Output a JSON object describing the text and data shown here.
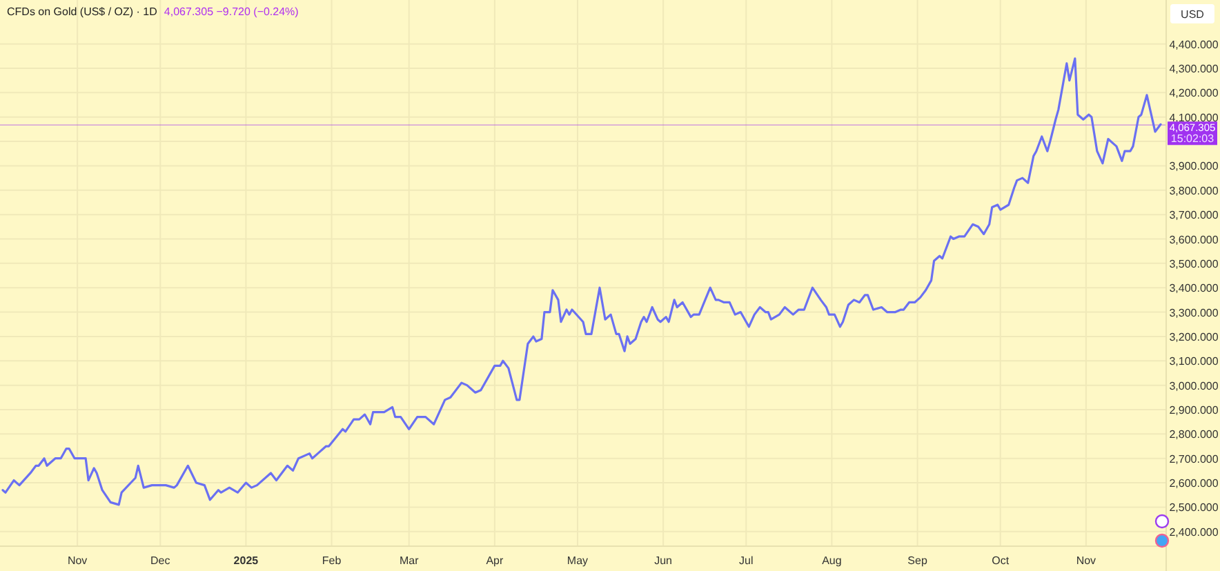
{
  "chart_data": {
    "type": "line",
    "title": "CFDs on Gold (US$ / OZ) · 1D",
    "subtitle": "4,067.305 −9.720 (−0.24%)",
    "ylabel": "USD",
    "annotations": [
      "15:02:03"
    ],
    "x": [
      "2024-10-05",
      "2024-10-06",
      "2024-10-09",
      "2024-10-11",
      "2024-10-15",
      "2024-10-17",
      "2024-10-18",
      "2024-10-20",
      "2024-10-21",
      "2024-10-24",
      "2024-10-26",
      "2024-10-28",
      "2024-10-29",
      "2024-10-31",
      "2024-11-04",
      "2024-11-05",
      "2024-11-07",
      "2024-11-08",
      "2024-11-10",
      "2024-11-13",
      "2024-11-16",
      "2024-11-17",
      "2024-11-22",
      "2024-11-23",
      "2024-11-25",
      "2024-11-28",
      "2024-11-30",
      "2024-12-01",
      "2024-12-03",
      "2024-12-06",
      "2024-12-07",
      "2024-12-11",
      "2024-12-14",
      "2024-12-17",
      "2024-12-19",
      "2024-12-22",
      "2024-12-23",
      "2024-12-26",
      "2024-12-29",
      "2025-01-01",
      "2025-01-03",
      "2025-01-05",
      "2025-01-10",
      "2025-01-12",
      "2025-01-16",
      "2025-01-18",
      "2025-01-20",
      "2025-01-24",
      "2025-01-25",
      "2025-01-27",
      "2025-01-30",
      "2025-01-31",
      "2025-02-05",
      "2025-02-06",
      "2025-02-09",
      "2025-02-11",
      "2025-02-13",
      "2025-02-15",
      "2025-02-16",
      "2025-02-20",
      "2025-02-23",
      "2025-02-24",
      "2025-02-26",
      "2025-03-01",
      "2025-03-04",
      "2025-03-07",
      "2025-03-10",
      "2025-03-14",
      "2025-03-16",
      "2025-03-20",
      "2025-03-22",
      "2025-03-25",
      "2025-03-27",
      "2025-04-01",
      "2025-04-03",
      "2025-04-04",
      "2025-04-06",
      "2025-04-09",
      "2025-04-10",
      "2025-04-13",
      "2025-04-15",
      "2025-04-16",
      "2025-04-18",
      "2025-04-19",
      "2025-04-21",
      "2025-04-22",
      "2025-04-24",
      "2025-04-25",
      "2025-04-27",
      "2025-04-28",
      "2025-04-29",
      "2025-05-03",
      "2025-05-04",
      "2025-05-06",
      "2025-05-09",
      "2025-05-11",
      "2025-05-13",
      "2025-05-15",
      "2025-05-16",
      "2025-05-18",
      "2025-05-19",
      "2025-05-20",
      "2025-05-22",
      "2025-05-24",
      "2025-05-25",
      "2025-05-26",
      "2025-05-28",
      "2025-05-30",
      "2025-05-31",
      "2025-06-02",
      "2025-06-03",
      "2025-06-05",
      "2025-06-06",
      "2025-06-08",
      "2025-06-09",
      "2025-06-11",
      "2025-06-12",
      "2025-06-14",
      "2025-06-18",
      "2025-06-20",
      "2025-06-21",
      "2025-06-23",
      "2025-06-25",
      "2025-06-27",
      "2025-06-29",
      "2025-07-02",
      "2025-07-04",
      "2025-07-06",
      "2025-07-08",
      "2025-07-09",
      "2025-07-10",
      "2025-07-13",
      "2025-07-15",
      "2025-07-18",
      "2025-07-20",
      "2025-07-22",
      "2025-07-25",
      "2025-07-28",
      "2025-07-30",
      "2025-07-31",
      "2025-08-02",
      "2025-08-04",
      "2025-08-05",
      "2025-08-07",
      "2025-08-09",
      "2025-08-11",
      "2025-08-13",
      "2025-08-14",
      "2025-08-16",
      "2025-08-19",
      "2025-08-21",
      "2025-08-24",
      "2025-08-26",
      "2025-08-27",
      "2025-08-29",
      "2025-08-31",
      "2025-09-02",
      "2025-09-04",
      "2025-09-06",
      "2025-09-07",
      "2025-09-09",
      "2025-09-10",
      "2025-09-13",
      "2025-09-14",
      "2025-09-16",
      "2025-09-18",
      "2025-09-21",
      "2025-09-23",
      "2025-09-25",
      "2025-09-27",
      "2025-09-28",
      "2025-09-30",
      "2025-10-01",
      "2025-10-04",
      "2025-10-06",
      "2025-10-07",
      "2025-10-09",
      "2025-10-11",
      "2025-10-13",
      "2025-10-14",
      "2025-10-16",
      "2025-10-18",
      "2025-10-19",
      "2025-10-21",
      "2025-10-22",
      "2025-10-25",
      "2025-10-26",
      "2025-10-28",
      "2025-10-29",
      "2025-10-31",
      "2025-11-02",
      "2025-11-03",
      "2025-11-05",
      "2025-11-07",
      "2025-11-09",
      "2025-11-11",
      "2025-11-12",
      "2025-11-14",
      "2025-11-15",
      "2025-11-17",
      "2025-11-18",
      "2025-11-20",
      "2025-11-21",
      "2025-11-23",
      "2025-11-26",
      "2025-11-28"
    ],
    "series": [
      {
        "color": "#6a70f2",
        "values": [
          2570,
          2560,
          2610,
          2590,
          2640,
          2670,
          2670,
          2700,
          2670,
          2700,
          2700,
          2740,
          2740,
          2700,
          2700,
          2610,
          2660,
          2640,
          2570,
          2520,
          2510,
          2560,
          2620,
          2670,
          2580,
          2590,
          2590,
          2590,
          2590,
          2580,
          2590,
          2670,
          2600,
          2590,
          2530,
          2570,
          2560,
          2580,
          2560,
          2600,
          2580,
          2590,
          2640,
          2610,
          2670,
          2650,
          2700,
          2720,
          2700,
          2720,
          2750,
          2750,
          2820,
          2810,
          2860,
          2860,
          2880,
          2840,
          2890,
          2890,
          2910,
          2870,
          2870,
          2820,
          2870,
          2870,
          2840,
          2940,
          2950,
          3010,
          3000,
          2970,
          2980,
          3080,
          3080,
          3100,
          3070,
          2940,
          2940,
          3170,
          3200,
          3180,
          3190,
          3300,
          3300,
          3390,
          3350,
          3260,
          3310,
          3290,
          3310,
          3260,
          3210,
          3210,
          3400,
          3270,
          3290,
          3210,
          3210,
          3140,
          3200,
          3170,
          3190,
          3260,
          3280,
          3260,
          3320,
          3270,
          3260,
          3280,
          3260,
          3350,
          3320,
          3340,
          3320,
          3280,
          3290,
          3290,
          3400,
          3350,
          3350,
          3340,
          3340,
          3290,
          3300,
          3240,
          3290,
          3320,
          3300,
          3300,
          3270,
          3290,
          3320,
          3290,
          3310,
          3310,
          3400,
          3350,
          3320,
          3290,
          3290,
          3240,
          3260,
          3330,
          3350,
          3340,
          3370,
          3370,
          3310,
          3320,
          3300,
          3300,
          3310,
          3310,
          3340,
          3340,
          3360,
          3390,
          3430,
          3510,
          3530,
          3520,
          3610,
          3600,
          3610,
          3610,
          3660,
          3650,
          3620,
          3660,
          3730,
          3740,
          3720,
          3740,
          3810,
          3840,
          3850,
          3830,
          3940,
          3960,
          4020,
          3960,
          4000,
          4090,
          4130,
          4320,
          4250,
          4340,
          4110,
          4090,
          4110,
          4100,
          3960,
          3910,
          4010,
          3990,
          3980,
          3920,
          3960,
          3960,
          3980,
          4100,
          4110,
          4190,
          4040,
          4070
        ]
      }
    ],
    "xlim": [
      "2024-10-04",
      "2025-11-30"
    ],
    "xticks": [
      {
        "value": "2024-11-01",
        "label": "Nov"
      },
      {
        "value": "2024-12-01",
        "label": "Dec"
      },
      {
        "value": "2025-01-01",
        "label": "2025"
      },
      {
        "value": "2025-02-01",
        "label": "Feb"
      },
      {
        "value": "2025-03-01",
        "label": "Mar"
      },
      {
        "value": "2025-04-01",
        "label": "Apr"
      },
      {
        "value": "2025-05-01",
        "label": "May"
      },
      {
        "value": "2025-06-01",
        "label": "Jun"
      },
      {
        "value": "2025-07-01",
        "label": "Jul"
      },
      {
        "value": "2025-08-01",
        "label": "Aug"
      },
      {
        "value": "2025-09-01",
        "label": "Sep"
      },
      {
        "value": "2025-10-01",
        "label": "Oct"
      },
      {
        "value": "2025-11-01",
        "label": "Nov"
      }
    ],
    "ylim": [
      2340,
      4580
    ],
    "yticks": [
      {
        "value": 2400,
        "label": "2,400.000"
      },
      {
        "value": 2500,
        "label": "2,500.000"
      },
      {
        "value": 2600,
        "label": "2,600.000"
      },
      {
        "value": 2700,
        "label": "2,700.000"
      },
      {
        "value": 2800,
        "label": "2,800.000"
      },
      {
        "value": 2900,
        "label": "2,900.000"
      },
      {
        "value": 3000,
        "label": "3,000.000"
      },
      {
        "value": 3100,
        "label": "3,100.000"
      },
      {
        "value": 3200,
        "label": "3,200.000"
      },
      {
        "value": 3300,
        "label": "3,300.000"
      },
      {
        "value": 3400,
        "label": "3,400.000"
      },
      {
        "value": 3500,
        "label": "3,500.000"
      },
      {
        "value": 3600,
        "label": "3,600.000"
      },
      {
        "value": 3700,
        "label": "3,700.000"
      },
      {
        "value": 3800,
        "label": "3,800.000"
      },
      {
        "value": 3900,
        "label": "3,900.000"
      },
      {
        "value": 4000,
        "label": null
      },
      {
        "value": 4100,
        "label": "4,100.000"
      },
      {
        "value": 4200,
        "label": "4,200.000"
      },
      {
        "value": 4300,
        "label": "4,300.000"
      },
      {
        "value": 4400,
        "label": "4,400.000"
      }
    ],
    "ref_lines": [
      {
        "axis": "y",
        "value": 4067.305,
        "label": "4,067.305",
        "color": "#a033f0"
      }
    ],
    "grid": true,
    "marker": "none",
    "line_style": "solid"
  }
}
